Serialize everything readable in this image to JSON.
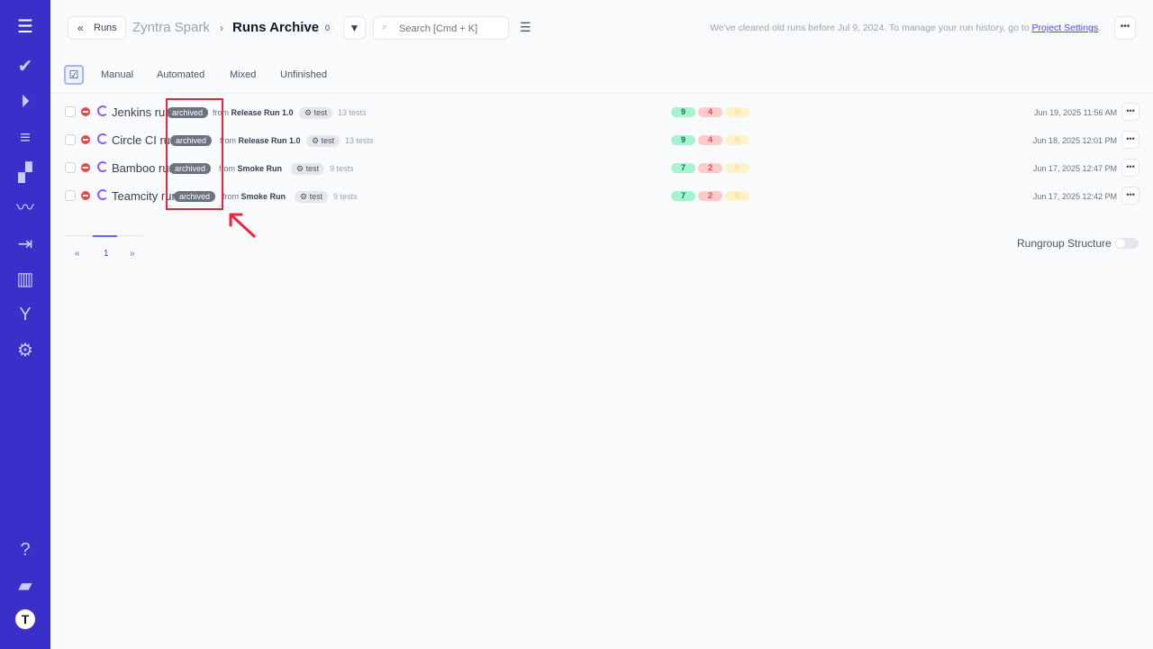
{
  "sidebar": {
    "items": [
      "menu-icon",
      "check-icon",
      "play-icon",
      "list-check-icon",
      "steps-icon",
      "pulse-icon",
      "import-icon",
      "chart-icon",
      "branch-icon",
      "gear-icon",
      "help-icon",
      "folder-icon",
      "profile-icon"
    ]
  },
  "header": {
    "back_label": "Runs",
    "project": "Zyntra Spark",
    "separator": "›",
    "title": "Runs Archive",
    "count": "0",
    "search_placeholder": "Search [Cmd + K]",
    "notice": "We've cleared old runs before Jul 9, 2024. To manage your run history, go to",
    "notice_link": "Project Settings",
    "notice_end": "."
  },
  "tabs": [
    "Manual",
    "Automated",
    "Mixed",
    "Unfinished"
  ],
  "runs": [
    {
      "name": "Jenkins run",
      "badge": "archived",
      "from": "from",
      "source": "Release Run 1.0",
      "tag": "test",
      "tests": "13 tests",
      "passed": "9",
      "failed": "4",
      "skipped": "0",
      "date": "Jun 19, 2025 11:56 AM"
    },
    {
      "name": "Circle CI run",
      "badge": "archived",
      "from": "from",
      "source": "Release Run 1.0",
      "tag": "test",
      "tests": "13 tests",
      "passed": "9",
      "failed": "4",
      "skipped": "0",
      "date": "Jun 18, 2025 12:01 PM"
    },
    {
      "name": "Bamboo run",
      "badge": "archived",
      "from": "from",
      "source": "Smoke Run",
      "tag": "test",
      "tests": "9 tests",
      "passed": "7",
      "failed": "2",
      "skipped": "0",
      "date": "Jun 17, 2025 12:47 PM"
    },
    {
      "name": "Teamcity run",
      "badge": "archived",
      "from": "from",
      "source": "Smoke Run",
      "tag": "test",
      "tests": "9 tests",
      "passed": "7",
      "failed": "2",
      "skipped": "0",
      "date": "Jun 17, 2025 12:42 PM"
    }
  ],
  "pagination": {
    "prev": "«",
    "current": "1",
    "next": "»"
  },
  "rungroup": {
    "label": "Rungroup Structure",
    "enabled": false
  },
  "colors": {
    "sidebar": "#3b2fc9",
    "accent": "#4f46e5",
    "passed": "#a7f3d0",
    "failed": "#fecaca",
    "skipped": "#fef3c7",
    "annotation": "#ef233c"
  }
}
